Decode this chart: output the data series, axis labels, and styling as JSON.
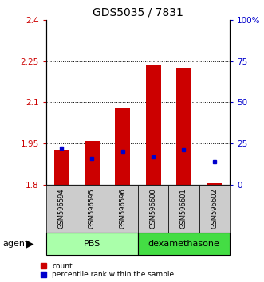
{
  "title": "GDS5035 / 7831",
  "samples": [
    "GSM596594",
    "GSM596595",
    "GSM596596",
    "GSM596600",
    "GSM596601",
    "GSM596602"
  ],
  "red_bottom": [
    1.8,
    1.8,
    1.8,
    1.8,
    1.8,
    1.8
  ],
  "red_top": [
    1.928,
    1.958,
    2.082,
    2.236,
    2.225,
    1.804
  ],
  "blue_pct": [
    22.0,
    16.0,
    20.0,
    17.0,
    21.0,
    14.0
  ],
  "ylim_left": [
    1.8,
    2.4
  ],
  "ylim_right": [
    0,
    100
  ],
  "left_ticks": [
    1.8,
    1.95,
    2.1,
    2.25,
    2.4
  ],
  "right_ticks": [
    0,
    25,
    50,
    75,
    100
  ],
  "left_tick_labels": [
    "1.8",
    "1.95",
    "2.1",
    "2.25",
    "2.4"
  ],
  "right_tick_labels": [
    "0",
    "25",
    "50",
    "75",
    "100%"
  ],
  "group_labels": [
    "PBS",
    "dexamethasone"
  ],
  "group_colors": [
    "#aaffaa",
    "#44dd44"
  ],
  "group_light": "#ccffcc",
  "bar_color": "#CC0000",
  "blue_color": "#0000CC",
  "title_fontsize": 10,
  "tick_fontsize": 7.5,
  "sample_fontsize": 6,
  "agent_fontsize": 8,
  "legend_fontsize": 6.5,
  "bar_width": 0.5,
  "gray_color": "#cccccc",
  "group_border_color": "#000000",
  "group_text_fontsize": 8
}
